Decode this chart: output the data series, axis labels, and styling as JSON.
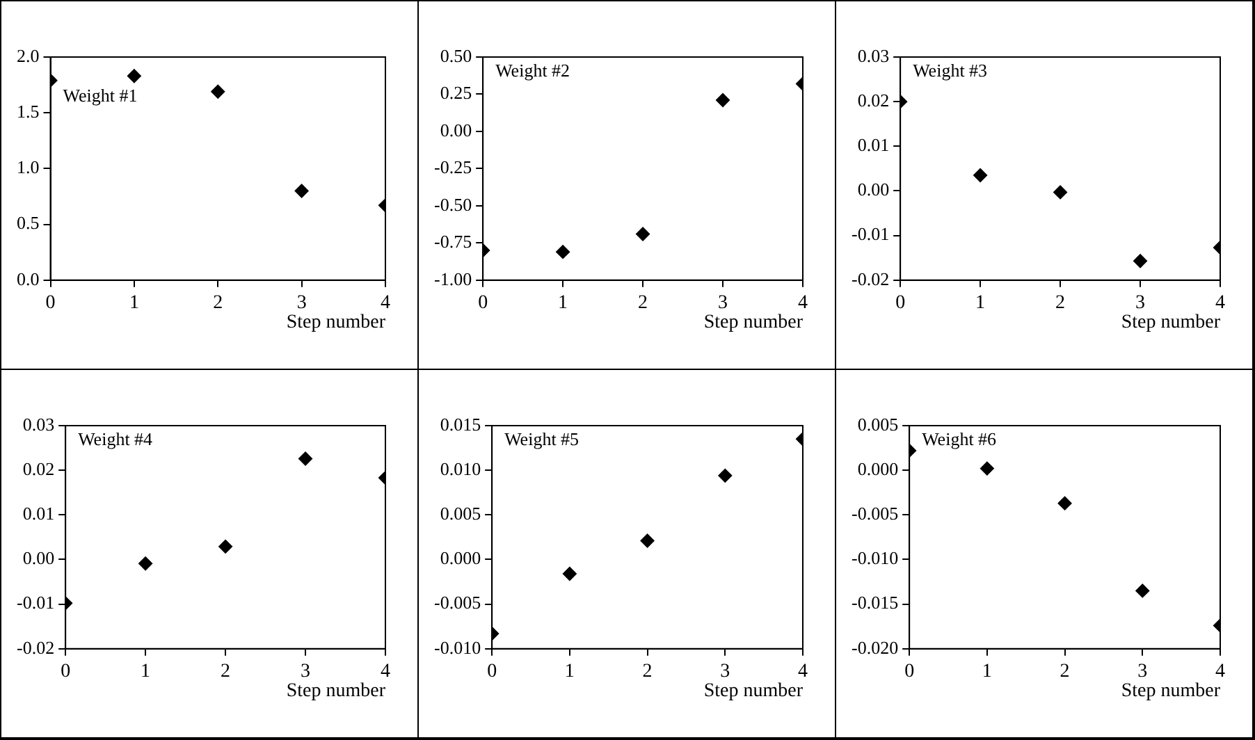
{
  "chart_data": [
    {
      "type": "scatter",
      "xlabel": "Step number",
      "annotations": [
        "Weight #1"
      ],
      "x": [
        0,
        1,
        2,
        3,
        4
      ],
      "series": [
        {
          "color": "#000000",
          "values": [
            1.79,
            1.83,
            1.69,
            0.8,
            0.67
          ]
        }
      ],
      "xlim": [
        0,
        4
      ],
      "xticks": [
        0,
        1,
        2,
        3,
        4
      ],
      "ylim": [
        0,
        2
      ],
      "yticks": [
        {
          "value": 0,
          "label": "0.0"
        },
        {
          "value": 0.5,
          "label": "0.5"
        },
        {
          "value": 1,
          "label": "1.0"
        },
        {
          "value": 1.5,
          "label": "1.5"
        },
        {
          "value": 2,
          "label": "2.0"
        }
      ],
      "marker": "diamond",
      "grid": false,
      "legend": false
    },
    {
      "type": "scatter",
      "xlabel": "Step number",
      "annotations": [
        "Weight #2"
      ],
      "x": [
        0,
        1,
        2,
        3,
        4
      ],
      "series": [
        {
          "color": "#000000",
          "values": [
            -0.8,
            -0.81,
            -0.69,
            0.21,
            0.32
          ]
        }
      ],
      "xlim": [
        0,
        4
      ],
      "xticks": [
        0,
        1,
        2,
        3,
        4
      ],
      "ylim": [
        -1,
        0.5
      ],
      "yticks": [
        {
          "value": -1,
          "label": "-1.00"
        },
        {
          "value": -0.75,
          "label": "-0.75"
        },
        {
          "value": -0.5,
          "label": "-0.50"
        },
        {
          "value": -0.25,
          "label": "-0.25"
        },
        {
          "value": 0,
          "label": "0.00"
        },
        {
          "value": 0.25,
          "label": "0.25"
        },
        {
          "value": 0.5,
          "label": "0.50"
        }
      ],
      "marker": "diamond",
      "grid": false,
      "legend": false
    },
    {
      "type": "scatter",
      "xlabel": "Step number",
      "annotations": [
        "Weight #3"
      ],
      "x": [
        0,
        1,
        2,
        3,
        4
      ],
      "series": [
        {
          "color": "#000000",
          "values": [
            0.02,
            0.0035,
            -0.0003,
            -0.0157,
            -0.0127
          ]
        }
      ],
      "xlim": [
        0,
        4
      ],
      "xticks": [
        0,
        1,
        2,
        3,
        4
      ],
      "ylim": [
        -0.02,
        0.03
      ],
      "yticks": [
        {
          "value": -0.02,
          "label": "-0.02"
        },
        {
          "value": -0.01,
          "label": "-0.01"
        },
        {
          "value": 0,
          "label": "0.00"
        },
        {
          "value": 0.01,
          "label": "0.01"
        },
        {
          "value": 0.02,
          "label": "0.02"
        },
        {
          "value": 0.03,
          "label": "0.03"
        }
      ],
      "marker": "diamond",
      "grid": false,
      "legend": false
    },
    {
      "type": "scatter",
      "xlabel": "Step number",
      "annotations": [
        "Weight #4"
      ],
      "x": [
        0,
        1,
        2,
        3,
        4
      ],
      "series": [
        {
          "color": "#000000",
          "values": [
            -0.0098,
            -0.0009,
            0.0029,
            0.0226,
            0.0183
          ]
        }
      ],
      "xlim": [
        0,
        4
      ],
      "xticks": [
        0,
        1,
        2,
        3,
        4
      ],
      "ylim": [
        -0.02,
        0.03
      ],
      "yticks": [
        {
          "value": -0.02,
          "label": "-0.02"
        },
        {
          "value": -0.01,
          "label": "-0.01"
        },
        {
          "value": 0,
          "label": "0.00"
        },
        {
          "value": 0.01,
          "label": "0.01"
        },
        {
          "value": 0.02,
          "label": "0.02"
        },
        {
          "value": 0.03,
          "label": "0.03"
        }
      ],
      "marker": "diamond",
      "grid": false,
      "legend": false
    },
    {
      "type": "scatter",
      "xlabel": "Step number",
      "annotations": [
        "Weight #5"
      ],
      "x": [
        0,
        1,
        2,
        3,
        4
      ],
      "series": [
        {
          "color": "#000000",
          "values": [
            -0.0083,
            -0.0016,
            0.0021,
            0.0094,
            0.0135
          ]
        }
      ],
      "xlim": [
        0,
        4
      ],
      "xticks": [
        0,
        1,
        2,
        3,
        4
      ],
      "ylim": [
        -0.01,
        0.015
      ],
      "yticks": [
        {
          "value": -0.01,
          "label": "-0.010"
        },
        {
          "value": -0.005,
          "label": "-0.005"
        },
        {
          "value": 0,
          "label": "0.000"
        },
        {
          "value": 0.005,
          "label": "0.005"
        },
        {
          "value": 0.01,
          "label": "0.010"
        },
        {
          "value": 0.015,
          "label": "0.015"
        }
      ],
      "marker": "diamond",
      "grid": false,
      "legend": false
    },
    {
      "type": "scatter",
      "xlabel": "Step number",
      "annotations": [
        "Weight #6"
      ],
      "x": [
        0,
        1,
        2,
        3,
        4
      ],
      "series": [
        {
          "color": "#000000",
          "values": [
            0.0022,
            0.0002,
            -0.0037,
            -0.0135,
            -0.0174
          ]
        }
      ],
      "xlim": [
        0,
        4
      ],
      "xticks": [
        0,
        1,
        2,
        3,
        4
      ],
      "ylim": [
        -0.02,
        0.005
      ],
      "yticks": [
        {
          "value": -0.02,
          "label": "-0.020"
        },
        {
          "value": -0.015,
          "label": "-0.015"
        },
        {
          "value": -0.01,
          "label": "-0.010"
        },
        {
          "value": -0.005,
          "label": "-0.005"
        },
        {
          "value": 0,
          "label": "0.000"
        },
        {
          "value": 0.005,
          "label": "0.005"
        }
      ],
      "marker": "diamond",
      "grid": false,
      "legend": false
    }
  ]
}
